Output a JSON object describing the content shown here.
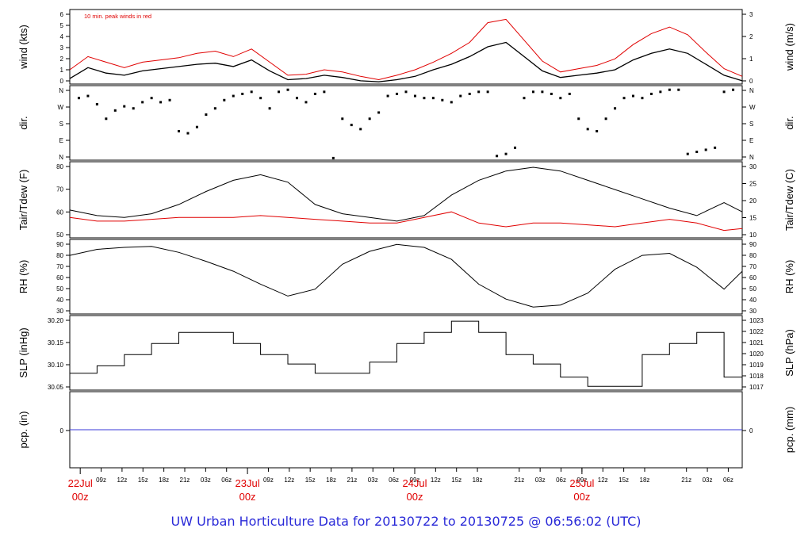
{
  "footer_title": "UW Urban Horticulture Data for 20130722  to  20130725 @ 06:56:02  (UTC)",
  "colors": {
    "axis": "#000000",
    "series_black": "#000000",
    "series_red": "#e00000",
    "footer": "#2a2ad8",
    "precip": "#3a3ad8",
    "date_label": "#e00000"
  },
  "chart_data": [
    {
      "id": "wind",
      "type": "line",
      "ylabel_left": "wind (kts)",
      "ylabel_right": "wind (m/s)",
      "yticks_left": [
        "0",
        "1",
        "2",
        "3",
        "4",
        "5",
        "6"
      ],
      "yticks_right": [
        "0",
        "1",
        "2",
        "3"
      ],
      "ylim": [
        0,
        6.8
      ],
      "annotation": "10 min. peak winds in red",
      "series": [
        {
          "color": "#000000",
          "x": [
            0,
            2,
            4,
            6,
            8,
            10,
            12,
            14,
            16,
            18,
            20,
            22,
            24,
            26,
            28,
            30,
            32,
            34,
            36,
            38,
            40,
            42,
            44,
            46,
            48,
            50,
            52,
            54,
            56,
            58,
            60,
            62,
            64,
            66,
            68,
            70,
            72,
            74
          ],
          "y": [
            0.5,
            1.5,
            1.0,
            0.8,
            1.2,
            1.4,
            1.6,
            1.8,
            1.9,
            1.6,
            2.2,
            1.2,
            0.4,
            0.5,
            0.8,
            0.6,
            0.3,
            0.2,
            0.4,
            0.7,
            1.3,
            1.8,
            2.5,
            3.4,
            3.8,
            2.5,
            1.2,
            0.6,
            0.8,
            1.0,
            1.3,
            2.2,
            2.8,
            3.2,
            2.8,
            1.8,
            0.8,
            0.3
          ]
        },
        {
          "color": "#e00000",
          "x": [
            0,
            2,
            4,
            6,
            8,
            10,
            12,
            14,
            16,
            18,
            20,
            22,
            24,
            26,
            28,
            30,
            32,
            34,
            36,
            38,
            40,
            42,
            44,
            46,
            48,
            50,
            52,
            54,
            56,
            58,
            60,
            62,
            64,
            66,
            68,
            70,
            72,
            74
          ],
          "y": [
            1.3,
            2.5,
            2.0,
            1.5,
            2.0,
            2.2,
            2.4,
            2.8,
            3.0,
            2.5,
            3.2,
            2.0,
            0.8,
            0.9,
            1.3,
            1.1,
            0.7,
            0.4,
            0.8,
            1.3,
            2.0,
            2.8,
            3.8,
            5.6,
            5.9,
            4.0,
            2.1,
            1.1,
            1.4,
            1.7,
            2.3,
            3.6,
            4.6,
            5.2,
            4.5,
            2.9,
            1.4,
            0.7
          ]
        }
      ]
    },
    {
      "id": "dir",
      "type": "scatter",
      "ylabel_left": "dir.",
      "ylabel_right": "dir.",
      "yticks_left": [
        "N",
        "E",
        "S",
        "W",
        "N"
      ],
      "yticks_right": [
        "N",
        "E",
        "S",
        "W",
        "N"
      ],
      "ylim": [
        0,
        360
      ],
      "series": [
        {
          "color": "#000000",
          "x": [
            1,
            2,
            3,
            4,
            5,
            6,
            7,
            8,
            9,
            10,
            11,
            12,
            13,
            14,
            15,
            16,
            17,
            18,
            19,
            20,
            21,
            22,
            23,
            24,
            25,
            26,
            27,
            28,
            29,
            30,
            31,
            32,
            33,
            34,
            35,
            36,
            37,
            38,
            39,
            40,
            41,
            42,
            43,
            44,
            45,
            46,
            47,
            48,
            49,
            50,
            51,
            52,
            53,
            54,
            55,
            56,
            57,
            58,
            59,
            60,
            61,
            62,
            63,
            64,
            65,
            66,
            67,
            68,
            69,
            70,
            71,
            72,
            73
          ],
          "y": [
            300,
            310,
            270,
            200,
            240,
            260,
            250,
            280,
            300,
            280,
            290,
            140,
            130,
            160,
            220,
            250,
            290,
            310,
            320,
            330,
            300,
            250,
            330,
            340,
            300,
            280,
            320,
            330,
            10,
            200,
            170,
            150,
            200,
            230,
            310,
            320,
            330,
            310,
            300,
            300,
            290,
            280,
            310,
            320,
            330,
            330,
            20,
            30,
            60,
            300,
            330,
            330,
            320,
            300,
            320,
            200,
            150,
            140,
            200,
            250,
            300,
            310,
            300,
            320,
            330,
            340,
            340,
            30,
            40,
            50,
            60,
            330,
            340
          ]
        }
      ]
    },
    {
      "id": "temp",
      "type": "line",
      "ylabel_left": "Tair/Tdew (F)",
      "ylabel_right": "Tair/Tdew (C)",
      "yticks_left": [
        "50",
        "60",
        "70",
        "80"
      ],
      "yticks_right": [
        "10",
        "15",
        "20",
        "25",
        "30"
      ],
      "ylim": [
        46,
        87
      ],
      "series": [
        {
          "color": "#000000",
          "x": [
            0,
            3,
            6,
            9,
            12,
            15,
            18,
            21,
            24,
            27,
            30,
            33,
            36,
            39,
            42,
            45,
            48,
            51,
            54,
            57,
            60,
            63,
            66,
            69,
            72,
            74
          ],
          "y": [
            61,
            58,
            57,
            59,
            64,
            71,
            77,
            80,
            76,
            64,
            59,
            57,
            55,
            58,
            69,
            77,
            82,
            84,
            82,
            77,
            72,
            67,
            62,
            58,
            65,
            60
          ]
        },
        {
          "color": "#e00000",
          "x": [
            0,
            3,
            6,
            9,
            12,
            15,
            18,
            21,
            24,
            27,
            30,
            33,
            36,
            39,
            42,
            45,
            48,
            51,
            54,
            57,
            60,
            63,
            66,
            69,
            72,
            74
          ],
          "y": [
            57,
            55,
            55,
            56,
            57,
            57,
            57,
            58,
            57,
            56,
            55,
            54,
            54,
            57,
            60,
            54,
            52,
            54,
            54,
            53,
            52,
            54,
            56,
            54,
            50,
            51
          ]
        }
      ]
    },
    {
      "id": "rh",
      "type": "line",
      "ylabel_left": "RH (%)",
      "ylabel_right": "RH (%)",
      "yticks_left": [
        "30",
        "40",
        "50",
        "60",
        "70",
        "80",
        "90"
      ],
      "yticks_right": [
        "30",
        "40",
        "50",
        "60",
        "70",
        "80",
        "90"
      ],
      "ylim": [
        25,
        100
      ],
      "series": [
        {
          "color": "#000000",
          "x": [
            0,
            3,
            6,
            9,
            12,
            15,
            18,
            21,
            24,
            27,
            30,
            33,
            36,
            39,
            42,
            45,
            48,
            51,
            54,
            57,
            60,
            63,
            66,
            69,
            72,
            74
          ],
          "y": [
            84,
            90,
            92,
            93,
            87,
            78,
            68,
            55,
            43,
            50,
            75,
            88,
            95,
            92,
            80,
            55,
            40,
            32,
            34,
            46,
            70,
            84,
            86,
            72,
            50,
            68
          ]
        }
      ]
    },
    {
      "id": "slp",
      "type": "line",
      "ylabel_left": "SLP (inHg)",
      "ylabel_right": "SLP (hPa)",
      "yticks_left": [
        "30.05",
        "30.10",
        "30.15",
        "30.20"
      ],
      "yticks_right": [
        "1017",
        "1018",
        "1019",
        "1020",
        "1021",
        "1022",
        "1023"
      ],
      "ylim": [
        30.025,
        30.225
      ],
      "series": [
        {
          "color": "#000000",
          "x": [
            0,
            3,
            6,
            9,
            12,
            15,
            18,
            21,
            24,
            27,
            30,
            33,
            36,
            39,
            42,
            45,
            48,
            51,
            54,
            57,
            60,
            63,
            66,
            69,
            72,
            74
          ],
          "y": [
            30.07,
            30.09,
            30.12,
            30.15,
            30.18,
            30.18,
            30.15,
            30.12,
            30.095,
            30.07,
            30.07,
            30.1,
            30.15,
            30.18,
            30.21,
            30.18,
            30.12,
            30.095,
            30.06,
            30.035,
            30.035,
            30.12,
            30.15,
            30.18,
            30.06,
            30.18
          ]
        }
      ]
    },
    {
      "id": "pcp",
      "type": "line",
      "ylabel_left": "pcp. (in)",
      "ylabel_right": "pcp. (mm)",
      "yticks_left": [
        "0"
      ],
      "yticks_right": [
        "0"
      ],
      "ylim": [
        -1,
        1
      ],
      "series": [
        {
          "color": "#3a3ad8",
          "x": [
            0,
            74
          ],
          "y": [
            0,
            0
          ]
        }
      ]
    }
  ],
  "x_axis": {
    "ticks_hours": [
      3,
      6,
      9,
      12,
      15,
      18,
      21,
      27,
      30,
      33,
      36,
      39,
      42,
      45,
      48,
      51,
      54,
      57,
      63,
      66,
      69,
      72,
      75,
      78,
      81,
      87,
      90,
      93
    ],
    "tick_labels": [
      "09z",
      "12z",
      "15z",
      "18z",
      "21z",
      "03z",
      "06z",
      "09z",
      "12z",
      "15z",
      "18z",
      "21z",
      "03z",
      "06z",
      "09z",
      "12z",
      "15z",
      "18z",
      "21z",
      "03z",
      "06z",
      "09z",
      "12z",
      "15z",
      "18z",
      "21z",
      "03z",
      "06z"
    ],
    "day_labels": [
      {
        "hour": 0,
        "day": "22Jul",
        "time": "00z"
      },
      {
        "hour": 24,
        "day": "23Jul",
        "time": "00z"
      },
      {
        "hour": 48,
        "day": "24Jul",
        "time": "00z"
      },
      {
        "hour": 72,
        "day": "25Jul",
        "time": "00z"
      }
    ]
  }
}
